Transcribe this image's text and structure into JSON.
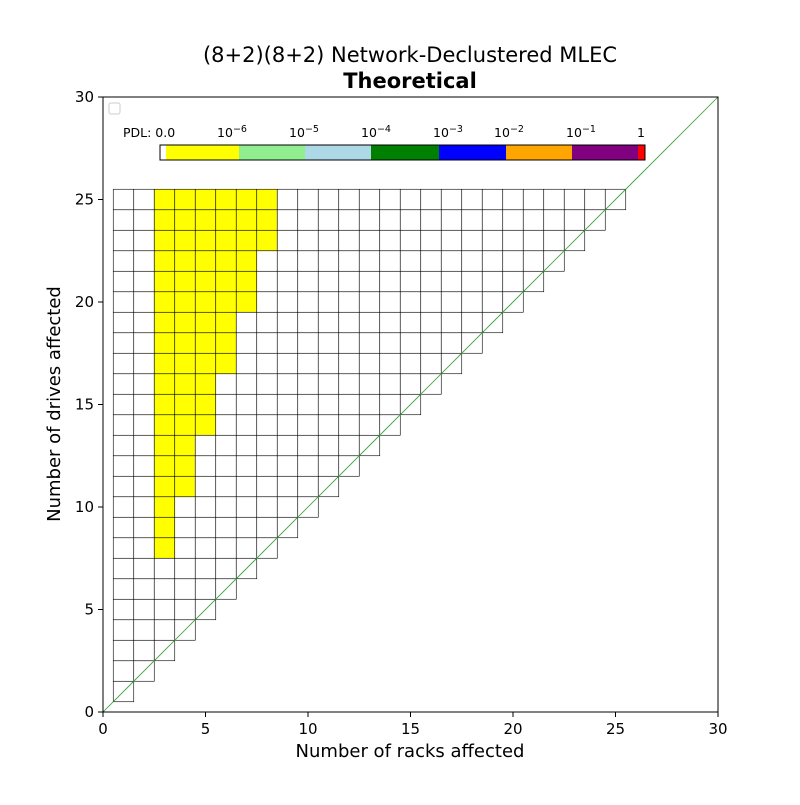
{
  "chart_data": {
    "type": "heatmap",
    "title": "(8+2)(8+2) Network-Declustered MLEC",
    "subtitle": "Theoretical",
    "xlabel": "Number of racks affected",
    "ylabel": "Number of drives affected",
    "xlim": [
      0,
      30
    ],
    "ylim": [
      0,
      30
    ],
    "xticks": [
      0,
      5,
      10,
      15,
      20,
      25,
      30
    ],
    "yticks": [
      0,
      5,
      10,
      15,
      20,
      25,
      30
    ],
    "grid": false,
    "diagonal_line": {
      "from": [
        0,
        0
      ],
      "to": [
        30,
        30
      ],
      "color": "#2ca02c"
    },
    "legend": {
      "placement": "upper-left",
      "entries": []
    },
    "colorbar": {
      "prefix": "PDL: ",
      "labels": [
        {
          "base": "0.0",
          "exp": ""
        },
        {
          "base": "10",
          "exp": "−6"
        },
        {
          "base": "10",
          "exp": "−5"
        },
        {
          "base": "10",
          "exp": "−4"
        },
        {
          "base": "10",
          "exp": "−3"
        },
        {
          "base": "10",
          "exp": "−2"
        },
        {
          "base": "10",
          "exp": "−1"
        },
        {
          "base": "1",
          "exp": ""
        }
      ],
      "colors": [
        "#ffff00",
        "#90ee90",
        "#add8e6",
        "#008000",
        "#0000ff",
        "#ffa500",
        "#800080",
        "#ff0000"
      ]
    },
    "cells": {
      "racks_range": [
        1,
        25
      ],
      "drives_range": [
        1,
        25
      ],
      "cell_exists_rule": "drives >= racks",
      "default_color": "#ffffff",
      "edge_color": "#000000",
      "filled_color": "#ffff00",
      "filled_pdl": "0.0",
      "filled_rule": "racks >= 3 and drives >= 3*racks - 1"
    }
  }
}
